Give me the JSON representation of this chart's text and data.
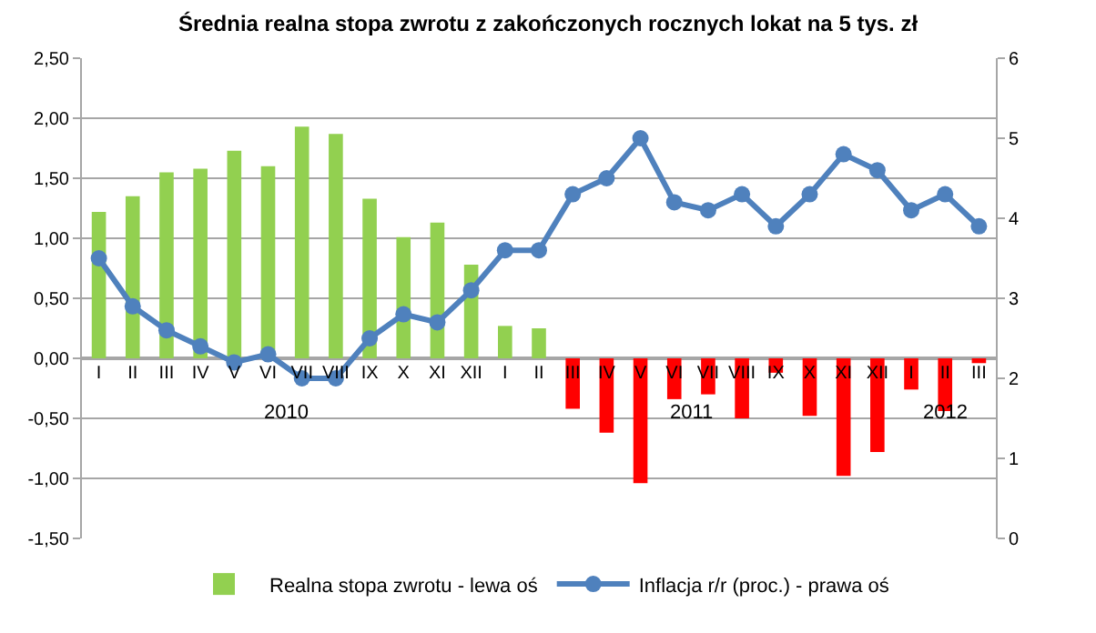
{
  "chart_data": {
    "type": "bar",
    "title": "Średnia realna stopa zwrotu z zakończonych rocznych lokat na 5 tys. zł",
    "categories": [
      "I",
      "II",
      "III",
      "IV",
      "V",
      "VI",
      "VII",
      "VIII",
      "IX",
      "X",
      "XI",
      "XII",
      "I",
      "II",
      "III",
      "IV",
      "V",
      "VI",
      "VII",
      "VIII",
      "IX",
      "X",
      "XI",
      "XII",
      "I",
      "II",
      "III"
    ],
    "series": [
      {
        "name": "Realna stopa zwrotu - lewa oś",
        "colors": [
          "#92d050",
          "#92d050",
          "#92d050",
          "#92d050",
          "#92d050",
          "#92d050",
          "#92d050",
          "#92d050",
          "#92d050",
          "#92d050",
          "#92d050",
          "#92d050",
          "#92d050",
          "#92d050",
          "#ff0000",
          "#ff0000",
          "#ff0000",
          "#ff0000",
          "#ff0000",
          "#ff0000",
          "#ff0000",
          "#ff0000",
          "#ff0000",
          "#ff0000",
          "#ff0000",
          "#ff0000",
          "#ff0000"
        ],
        "values": [
          1.22,
          1.35,
          1.55,
          1.58,
          1.73,
          1.6,
          1.93,
          1.87,
          1.33,
          1.01,
          1.13,
          0.78,
          0.27,
          0.25,
          -0.42,
          -0.62,
          -1.04,
          -0.34,
          -0.3,
          -0.5,
          -0.12,
          -0.48,
          -0.98,
          -0.78,
          -0.26,
          -0.44,
          -0.04
        ]
      },
      {
        "name": "Inflacja r/r (proc.) - prawa oś",
        "type": "line",
        "axis": "y2",
        "color": "#4f81bd",
        "marker": "circle",
        "values": [
          3.5,
          2.9,
          2.6,
          2.4,
          2.2,
          2.3,
          2.0,
          2.0,
          2.5,
          2.8,
          2.7,
          3.1,
          3.6,
          3.6,
          4.3,
          4.5,
          5.0,
          4.2,
          4.1,
          4.3,
          3.9,
          4.3,
          4.8,
          4.6,
          4.1,
          4.3,
          3.9
        ]
      }
    ],
    "annotations": [
      "2010",
      "2011",
      "2012"
    ],
    "ylim": [
      -1.5,
      2.5
    ],
    "yticks": [
      {
        "value": -1.5,
        "label": "-1,50"
      },
      {
        "value": -1.0,
        "label": "-1,00"
      },
      {
        "value": -0.5,
        "label": "-0,50"
      },
      {
        "value": 0,
        "label": "0,00"
      },
      {
        "value": 0.5,
        "label": "0,50"
      },
      {
        "value": 1.0,
        "label": "1,00"
      },
      {
        "value": 1.5,
        "label": "1,50"
      },
      {
        "value": 2.0,
        "label": "2,00"
      },
      {
        "value": 2.5,
        "label": "2,50"
      }
    ],
    "y2lim": [
      0,
      6
    ],
    "y2ticks": [
      0,
      1,
      2,
      3,
      4,
      5,
      6
    ],
    "grid": "y",
    "legend": "bottom"
  }
}
